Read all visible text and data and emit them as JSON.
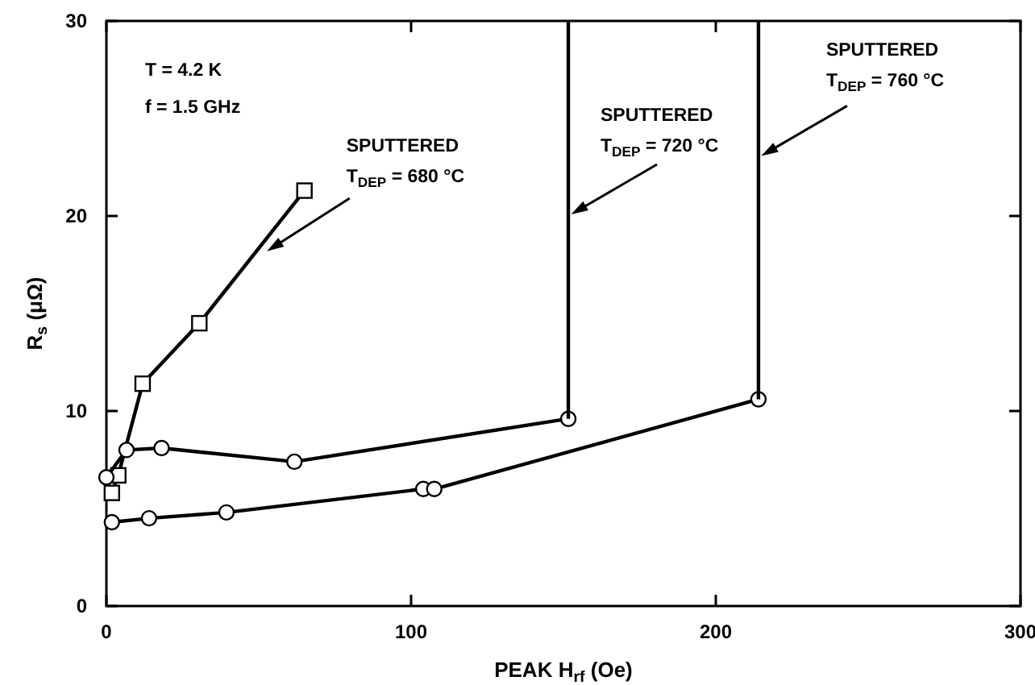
{
  "chart_data": {
    "type": "line",
    "xlabel": "PEAK H$_{rf}$ (Oe)",
    "ylabel": "R$_{s}$ (μΩ)",
    "xlim": [
      0,
      300
    ],
    "ylim": [
      0,
      30
    ],
    "xticks": [
      0,
      100,
      200,
      300
    ],
    "yticks": [
      0,
      10,
      20,
      30
    ],
    "grid": false,
    "line_style": "solid",
    "series": [
      {
        "color": "#000000",
        "marker": "square",
        "x": [
          1.8,
          3.9,
          5,
          11.9,
          30.5,
          65
        ],
        "values": [
          5.8,
          6.7,
          null,
          11.4,
          14.5,
          21.3
        ]
      },
      {
        "color": "#000000",
        "marker": "circle",
        "x": [
          0,
          6.6,
          18.1,
          61.7,
          151.6
        ],
        "values": [
          6.6,
          8.0,
          8.1,
          7.4,
          9.6
        ]
      },
      {
        "color": "#000000",
        "marker": "none",
        "x": [
          151.6,
          151.6
        ],
        "values": [
          9.6,
          30
        ]
      },
      {
        "color": "#000000",
        "marker": "circle",
        "x": [
          1.8,
          14,
          39.4,
          104,
          107.6,
          214
        ],
        "values": [
          4.3,
          4.5,
          4.8,
          6.0,
          6.0,
          10.6
        ]
      },
      {
        "color": "#000000",
        "marker": "none",
        "x": [
          214,
          214
        ],
        "values": [
          10.6,
          30
        ]
      }
    ],
    "annotations": [
      "T = 4.2 K",
      "f = 1.5 GHz",
      {
        "text": "SPUTTERED\nT$_{DEP}$ = 680 °C",
        "x": 51.8,
        "y": 18.1
      },
      {
        "text": "SPUTTERED\nT$_{DEP}$ = 720 °C",
        "x": 151.6,
        "y": 20
      },
      {
        "text": "SPUTTERED\nT$_{DEP}$ = 760 °C",
        "x": 214,
        "y": 23
      }
    ]
  }
}
